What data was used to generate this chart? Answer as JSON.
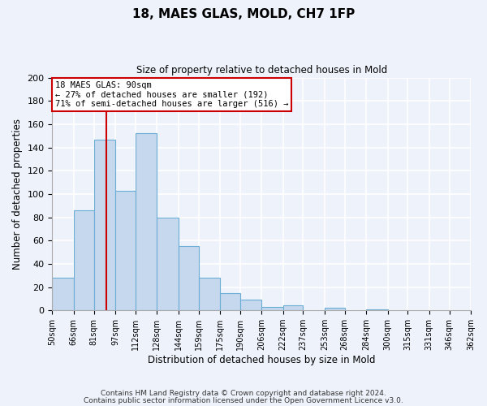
{
  "title": "18, MAES GLAS, MOLD, CH7 1FP",
  "subtitle": "Size of property relative to detached houses in Mold",
  "xlabel": "Distribution of detached houses by size in Mold",
  "ylabel": "Number of detached properties",
  "bar_values": [
    28,
    86,
    147,
    103,
    152,
    80,
    55,
    28,
    15,
    9,
    3,
    4,
    0,
    2,
    0,
    1,
    0,
    0,
    0,
    0
  ],
  "bin_labels": [
    "50sqm",
    "66sqm",
    "81sqm",
    "97sqm",
    "112sqm",
    "128sqm",
    "144sqm",
    "159sqm",
    "175sqm",
    "190sqm",
    "206sqm",
    "222sqm",
    "237sqm",
    "253sqm",
    "268sqm",
    "284sqm",
    "300sqm",
    "315sqm",
    "331sqm",
    "346sqm",
    "362sqm"
  ],
  "bin_edges": [
    50,
    66,
    81,
    97,
    112,
    128,
    144,
    159,
    175,
    190,
    206,
    222,
    237,
    253,
    268,
    284,
    300,
    315,
    331,
    346,
    362
  ],
  "bar_color": "#c5d8ee",
  "bar_edge_color": "#6aaed6",
  "vline_x": 90,
  "vline_color": "#cc0000",
  "ylim": [
    0,
    200
  ],
  "yticks": [
    0,
    20,
    40,
    60,
    80,
    100,
    120,
    140,
    160,
    180,
    200
  ],
  "annotation_title": "18 MAES GLAS: 90sqm",
  "annotation_line1": "← 27% of detached houses are smaller (192)",
  "annotation_line2": "71% of semi-detached houses are larger (516) →",
  "annotation_box_color": "#ffffff",
  "annotation_box_edge": "#cc0000",
  "footer1": "Contains HM Land Registry data © Crown copyright and database right 2024.",
  "footer2": "Contains public sector information licensed under the Open Government Licence v3.0.",
  "bg_color": "#eef2fb",
  "grid_color": "#ffffff",
  "fig_width": 6.0,
  "fig_height": 5.0,
  "dpi": 100
}
